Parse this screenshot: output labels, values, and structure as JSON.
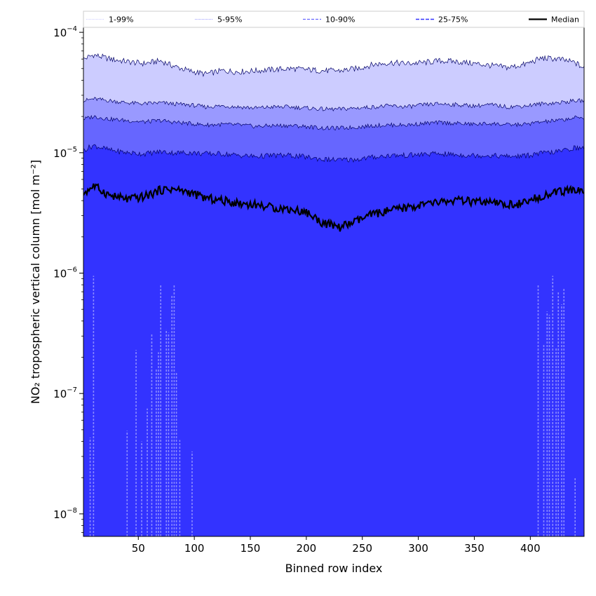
{
  "chart_data": {
    "type": "area",
    "xlabel": "Binned row index",
    "ylabel": "NO₂ tropospheric vertical column [mol m⁻²]",
    "x_range": [
      1,
      448
    ],
    "ylim": [
      6.5e-09,
      0.00011
    ],
    "y_scale": "log",
    "grid": false,
    "legend_placement": "top",
    "x_ticks": [
      {
        "value": 50,
        "label": "50"
      },
      {
        "value": 100,
        "label": "100"
      },
      {
        "value": 150,
        "label": "150"
      },
      {
        "value": 200,
        "label": "200"
      },
      {
        "value": 250,
        "label": "250"
      },
      {
        "value": 300,
        "label": "300"
      },
      {
        "value": 350,
        "label": "350"
      },
      {
        "value": 400,
        "label": "400"
      }
    ],
    "y_ticks": [
      {
        "value": 1e-08,
        "base": "10",
        "exp": "−8"
      },
      {
        "value": 1e-07,
        "base": "10",
        "exp": "−7"
      },
      {
        "value": 1e-06,
        "base": "10",
        "exp": "−6"
      },
      {
        "value": 1e-05,
        "base": "10",
        "exp": "−5"
      },
      {
        "value": 0.0001,
        "base": "10",
        "exp": "−4"
      }
    ],
    "x": [
      1,
      10,
      25,
      40,
      55,
      70,
      80,
      95,
      110,
      125,
      140,
      155,
      170,
      185,
      200,
      215,
      230,
      245,
      260,
      275,
      290,
      305,
      320,
      335,
      350,
      365,
      380,
      395,
      410,
      425,
      440,
      448
    ],
    "series": [
      {
        "name": "1-99%",
        "color": "#ccccff",
        "role": "outer",
        "lower": [
          6.5e-09,
          6.5e-09,
          6.5e-09,
          6.5e-09,
          6.5e-09,
          6.5e-09,
          6.5e-09,
          6.5e-09,
          6.5e-09,
          6.5e-09,
          6.5e-09,
          6.5e-09,
          6.5e-09,
          6.5e-09,
          6.5e-09,
          6.5e-09,
          6.5e-09,
          6.5e-09,
          6.5e-09,
          6.5e-09,
          6.5e-09,
          6.5e-09,
          6.5e-09,
          6.5e-09,
          6.5e-09,
          6.5e-09,
          6.5e-09,
          6.5e-09,
          6.5e-09,
          6.5e-09,
          6.5e-09,
          6.5e-09
        ],
        "upper": [
          6e-05,
          6.5e-05,
          6e-05,
          5.7e-05,
          5.5e-05,
          5.8e-05,
          5.3e-05,
          4.8e-05,
          4.5e-05,
          4.8e-05,
          4.7e-05,
          4.8e-05,
          4.9e-05,
          5e-05,
          4.9e-05,
          4.8e-05,
          4.8e-05,
          5e-05,
          5.4e-05,
          5.6e-05,
          5.5e-05,
          5.6e-05,
          5.8e-05,
          5.7e-05,
          5.5e-05,
          5.3e-05,
          5.1e-05,
          5.4e-05,
          6.1e-05,
          6e-05,
          5.6e-05,
          5e-05
        ]
      },
      {
        "name": "5-95%",
        "color": "#9999ff",
        "role": "band",
        "upper": [
          2.7e-05,
          2.8e-05,
          2.7e-05,
          2.6e-05,
          2.55e-05,
          2.6e-05,
          2.55e-05,
          2.5e-05,
          2.4e-05,
          2.45e-05,
          2.4e-05,
          2.35e-05,
          2.4e-05,
          2.4e-05,
          2.35e-05,
          2.3e-05,
          2.3e-05,
          2.35e-05,
          2.4e-05,
          2.45e-05,
          2.4e-05,
          2.5e-05,
          2.55e-05,
          2.5e-05,
          2.45e-05,
          2.5e-05,
          2.4e-05,
          2.45e-05,
          2.55e-05,
          2.6e-05,
          2.7e-05,
          2.7e-05
        ]
      },
      {
        "name": "10-90%",
        "color": "#6666ff",
        "role": "band",
        "upper": [
          1.9e-05,
          2e-05,
          1.9e-05,
          1.85e-05,
          1.8e-05,
          1.85e-05,
          1.8e-05,
          1.75e-05,
          1.7e-05,
          1.72e-05,
          1.7e-05,
          1.65e-05,
          1.68e-05,
          1.68e-05,
          1.65e-05,
          1.6e-05,
          1.6e-05,
          1.63e-05,
          1.68e-05,
          1.7e-05,
          1.7e-05,
          1.75e-05,
          1.78e-05,
          1.75e-05,
          1.72e-05,
          1.75e-05,
          1.7e-05,
          1.72e-05,
          1.8e-05,
          1.85e-05,
          1.95e-05,
          1.95e-05
        ]
      },
      {
        "name": "25-75%",
        "color": "#3333ff",
        "role": "band",
        "upper": [
          1.05e-05,
          1.15e-05,
          1.05e-05,
          1e-05,
          9.8e-06,
          1.02e-05,
          1e-05,
          1e-05,
          9.8e-06,
          9.8e-06,
          9.5e-06,
          9.3e-06,
          9.5e-06,
          9.5e-06,
          9.2e-06,
          8.8e-06,
          8.7e-06,
          8.8e-06,
          9.2e-06,
          9.5e-06,
          9.5e-06,
          9.7e-06,
          9.8e-06,
          9.6e-06,
          9.5e-06,
          9.5e-06,
          9.3e-06,
          9.4e-06,
          9.9e-06,
          1.02e-05,
          1.1e-05,
          1.08e-05
        ]
      },
      {
        "name": "Median",
        "color": "#000000",
        "role": "line",
        "values": [
          4.6e-06,
          5.3e-06,
          4.4e-06,
          4.1e-06,
          4.3e-06,
          4.9e-06,
          5e-06,
          4.7e-06,
          4.2e-06,
          4e-06,
          3.8e-06,
          3.7e-06,
          3.5e-06,
          3.4e-06,
          3.2e-06,
          2.6e-06,
          2.4e-06,
          2.7e-06,
          3.1e-06,
          3.3e-06,
          3.5e-06,
          3.7e-06,
          3.9e-06,
          4e-06,
          3.9e-06,
          3.8e-06,
          3.7e-06,
          3.8e-06,
          4.4e-06,
          4.7e-06,
          4.9e-06,
          4.8e-06
        ]
      }
    ],
    "spikes": [
      {
        "x": 7,
        "top": 4.3e-08
      },
      {
        "x": 10,
        "top": 9.5e-07
      },
      {
        "x": 40,
        "top": 4.9e-08
      },
      {
        "x": 48,
        "top": 2.3e-07
      },
      {
        "x": 53,
        "top": 4e-08
      },
      {
        "x": 58,
        "top": 7.5e-08
      },
      {
        "x": 62,
        "top": 3.1e-07
      },
      {
        "x": 66,
        "top": 1.6e-07
      },
      {
        "x": 68,
        "top": 2.2e-07
      },
      {
        "x": 70,
        "top": 8e-07
      },
      {
        "x": 75,
        "top": 3.4e-07
      },
      {
        "x": 77,
        "top": 3.2e-07
      },
      {
        "x": 80,
        "top": 6.5e-07
      },
      {
        "x": 82,
        "top": 8e-07
      },
      {
        "x": 84,
        "top": 1.5e-07
      },
      {
        "x": 87,
        "top": 4.1e-08
      },
      {
        "x": 98,
        "top": 3.3e-08
      },
      {
        "x": 407,
        "top": 8e-07
      },
      {
        "x": 412,
        "top": 2.6e-07
      },
      {
        "x": 415,
        "top": 4.8e-07
      },
      {
        "x": 417,
        "top": 4.5e-07
      },
      {
        "x": 420,
        "top": 9.5e-07
      },
      {
        "x": 423,
        "top": 2.4e-07
      },
      {
        "x": 425,
        "top": 7e-07
      },
      {
        "x": 428,
        "top": 5.5e-07
      },
      {
        "x": 430,
        "top": 7.5e-07
      },
      {
        "x": 440,
        "top": 2e-08
      }
    ]
  }
}
